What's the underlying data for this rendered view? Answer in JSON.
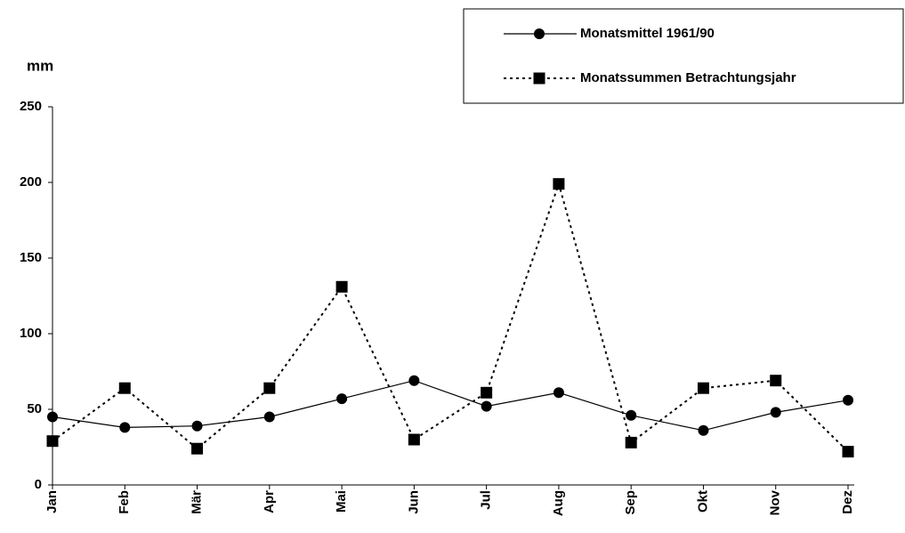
{
  "chart_data": {
    "type": "line",
    "y_label": "mm",
    "categories": [
      "Jan",
      "Feb",
      "Mär",
      "Apr",
      "Mai",
      "Jun",
      "Jul",
      "Aug",
      "Sep",
      "Okt",
      "Nov",
      "Dez"
    ],
    "series": [
      {
        "name": "Monatsmittel 1961/90",
        "color": "#000000",
        "marker": "circle",
        "dashed": false,
        "values": [
          45,
          38,
          39,
          45,
          57,
          69,
          52,
          61,
          46,
          36,
          48,
          56
        ]
      },
      {
        "name": "Monatssummen Betrachtungsjahr",
        "color": "#000000",
        "marker": "square",
        "dashed": true,
        "values": [
          29,
          64,
          24,
          64,
          131,
          30,
          61,
          199,
          28,
          64,
          69,
          22
        ]
      }
    ],
    "ylim": [
      0,
      250
    ],
    "yticks": [
      0,
      50,
      100,
      150,
      200,
      250
    ],
    "grid": false
  }
}
